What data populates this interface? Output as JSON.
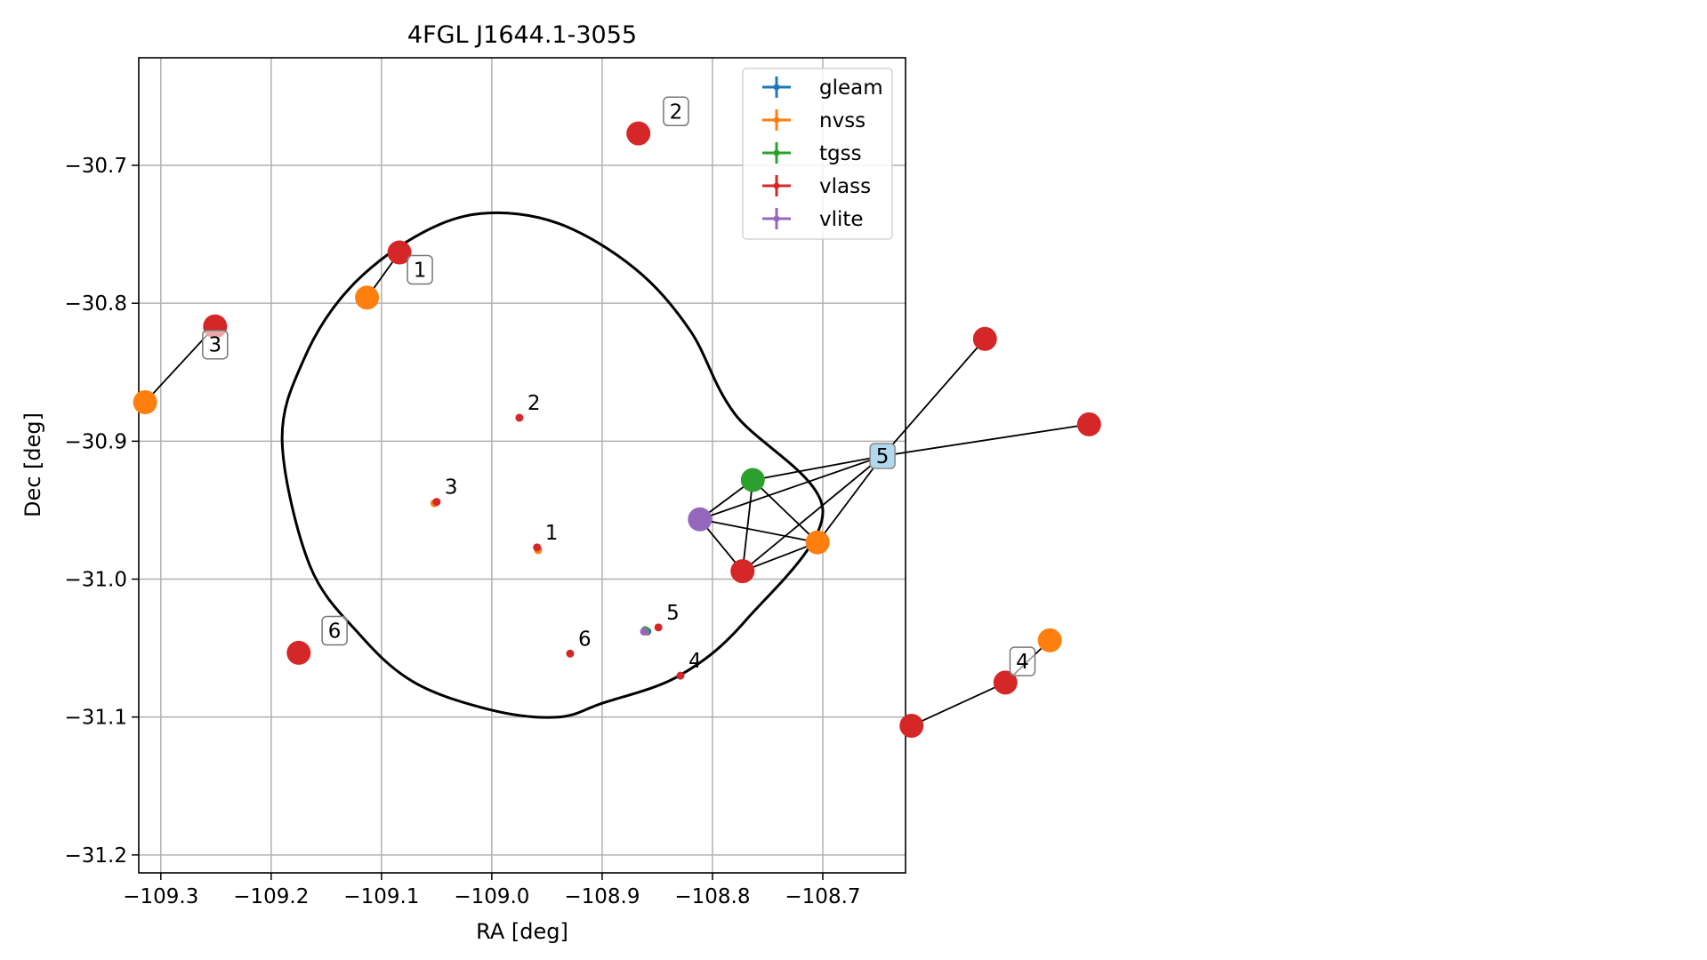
{
  "chart_data": [
    {
      "type": "scatter",
      "title": "4FGL J1644.1-3055",
      "xlabel": "RA [deg]",
      "ylabel": "Dec [deg]",
      "xlim": [
        -109.32,
        -108.625
      ],
      "ylim": [
        -31.213,
        -30.622
      ],
      "xticks": [
        -109.3,
        -109.2,
        -109.1,
        -109.0,
        -108.9,
        -108.8,
        -108.7
      ],
      "xtick_labels": [
        "−109.3",
        "−109.2",
        "−109.1",
        "−109.0",
        "−108.9",
        "−108.8",
        "−108.7"
      ],
      "yticks": [
        -30.7,
        -30.8,
        -30.9,
        -31.0,
        -31.1,
        -31.2
      ],
      "ytick_labels": [
        "−30.7",
        "−30.8",
        "−30.9",
        "−31.0",
        "−31.1",
        "−31.2"
      ],
      "grid": true,
      "legend_position": "top-right",
      "ellipse": {
        "center": [
          -109.002,
          -30.9175
        ],
        "points": [
          [
            -109.19,
            -30.9
          ],
          [
            -109.17,
            -30.84
          ],
          [
            -109.13,
            -30.79
          ],
          [
            -109.07,
            -30.752
          ],
          [
            -109.01,
            -30.735
          ],
          [
            -108.94,
            -30.742
          ],
          [
            -108.87,
            -30.775
          ],
          [
            -108.82,
            -30.82
          ],
          [
            -108.78,
            -30.88
          ],
          [
            -108.7,
            -30.95
          ],
          [
            -108.77,
            -31.03
          ],
          [
            -108.83,
            -31.07
          ],
          [
            -108.9,
            -31.09
          ],
          [
            -108.94,
            -31.1
          ],
          [
            -109.0,
            -31.095
          ],
          [
            -109.07,
            -31.075
          ],
          [
            -109.12,
            -31.04
          ],
          [
            -109.165,
            -30.99
          ]
        ],
        "color": "#000000"
      },
      "series": [
        {
          "name": "gleam",
          "color": "#1f77b4",
          "points": [
            [
              -108.859,
              -31.038
            ]
          ]
        },
        {
          "name": "nvss",
          "color": "#ff7f0e",
          "points": [
            [
              -108.958,
              -30.979
            ],
            [
              -109.052,
              -30.945
            ],
            [
              -108.861,
              -31.038
            ]
          ]
        },
        {
          "name": "tgss",
          "color": "#2ca02c",
          "points": [
            [
              -108.861,
              -31.037
            ]
          ]
        },
        {
          "name": "vlass",
          "color": "#d62728",
          "points": [
            [
              -108.959,
              -30.977
            ],
            [
              -108.975,
              -30.883
            ],
            [
              -109.05,
              -30.944
            ],
            [
              -108.829,
              -31.07
            ],
            [
              -108.849,
              -31.035
            ],
            [
              -108.929,
              -31.054
            ]
          ]
        },
        {
          "name": "vlite",
          "color": "#9467bd",
          "points": [
            [
              -108.862,
              -31.038
            ]
          ]
        }
      ],
      "annotations": [
        {
          "text": "1",
          "x": -108.959,
          "y": -30.977
        },
        {
          "text": "2",
          "x": -108.975,
          "y": -30.883
        },
        {
          "text": "3",
          "x": -109.05,
          "y": -30.944
        },
        {
          "text": "4",
          "x": -108.829,
          "y": -31.07
        },
        {
          "text": "5",
          "x": -108.849,
          "y": -31.035
        },
        {
          "text": "6",
          "x": -108.929,
          "y": -31.054
        }
      ]
    },
    {
      "type": "network",
      "nodes": [
        {
          "id": "v1",
          "color": "#d62728",
          "pos": [
            0.234,
            0.263
          ]
        },
        {
          "id": "n1",
          "color": "#ff7f0e",
          "pos": [
            0.215,
            0.31
          ]
        },
        {
          "id": "v2",
          "color": "#d62728",
          "pos": [
            0.374,
            0.139
          ]
        },
        {
          "id": "v3",
          "color": "#d62728",
          "pos": [
            0.126,
            0.34
          ]
        },
        {
          "id": "n3",
          "color": "#ff7f0e",
          "pos": [
            0.085,
            0.419
          ]
        },
        {
          "id": "l5",
          "color": "#b2d8ee",
          "pos": [
            0.517,
            0.475
          ],
          "shape": "square",
          "label": "5"
        },
        {
          "id": "v5a",
          "color": "#d62728",
          "pos": [
            0.577,
            0.353
          ]
        },
        {
          "id": "v5b",
          "color": "#d62728",
          "pos": [
            0.638,
            0.442
          ]
        },
        {
          "id": "g5",
          "color": "#2ca02c",
          "pos": [
            0.441,
            0.5
          ]
        },
        {
          "id": "w5",
          "color": "#9467bd",
          "pos": [
            0.41,
            0.541
          ]
        },
        {
          "id": "n5",
          "color": "#ff7f0e",
          "pos": [
            0.479,
            0.565
          ]
        },
        {
          "id": "v5c",
          "color": "#d62728",
          "pos": [
            0.435,
            0.595
          ]
        },
        {
          "id": "v6",
          "color": "#d62728",
          "pos": [
            0.175,
            0.68
          ]
        },
        {
          "id": "v4a",
          "color": "#d62728",
          "pos": [
            0.589,
            0.711
          ]
        },
        {
          "id": "n4",
          "color": "#ff7f0e",
          "pos": [
            0.615,
            0.667
          ]
        },
        {
          "id": "v4b",
          "color": "#d62728",
          "pos": [
            0.534,
            0.756
          ]
        }
      ],
      "edges": [
        [
          "v1",
          "n1"
        ],
        [
          "v3",
          "n3"
        ],
        [
          "l5",
          "v5a"
        ],
        [
          "l5",
          "v5b"
        ],
        [
          "l5",
          "g5"
        ],
        [
          "l5",
          "n5"
        ],
        [
          "l5",
          "v5c"
        ],
        [
          "l5",
          "w5"
        ],
        [
          "g5",
          "w5"
        ],
        [
          "g5",
          "n5"
        ],
        [
          "g5",
          "v5c"
        ],
        [
          "w5",
          "n5"
        ],
        [
          "w5",
          "v5c"
        ],
        [
          "n5",
          "v5c"
        ],
        [
          "v4a",
          "n4"
        ],
        [
          "v4a",
          "v4b"
        ]
      ],
      "labels": [
        {
          "text": "1",
          "node": "v1",
          "dx": 0.012,
          "dy": 0.018
        },
        {
          "text": "2",
          "node": "v2",
          "dx": 0.022,
          "dy": -0.023
        },
        {
          "text": "3",
          "node": "v3",
          "dx": 0.0,
          "dy": 0.019
        },
        {
          "text": "4",
          "node": "v4a",
          "dx": 0.01,
          "dy": -0.022
        },
        {
          "text": "6",
          "node": "v6",
          "dx": 0.021,
          "dy": -0.023
        }
      ]
    }
  ]
}
